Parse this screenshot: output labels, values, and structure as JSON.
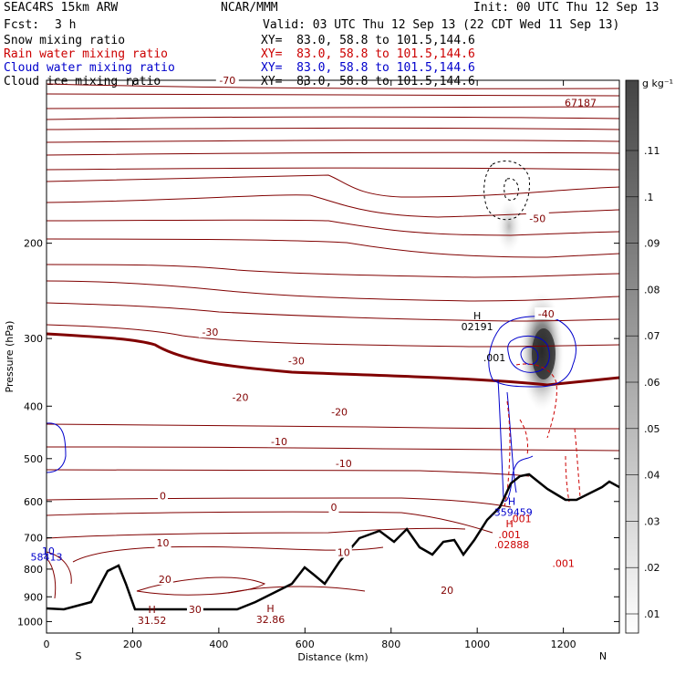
{
  "header": {
    "title": "SEAC4RS 15km ARW",
    "org": "NCAR/MMM",
    "init": "Init: 00 UTC Thu 12 Sep 13",
    "fcst_label": "Fcst:",
    "fcst_value": "3 h",
    "valid": "Valid: 03 UTC Thu 12 Sep 13 (22 CDT Wed 11 Sep 13)"
  },
  "legend_lines": [
    {
      "name": "Snow mixing ratio",
      "xy": "XY=  83.0, 58.8 to 101.5,144.6",
      "color": "#000000"
    },
    {
      "name": "Rain water mixing ratio",
      "xy": "XY=  83.0, 58.8 to 101.5,144.6",
      "color": "#cc0000"
    },
    {
      "name": "Cloud water mixing ratio",
      "xy": "XY=  83.0, 58.8 to 101.5,144.6",
      "color": "#0000cc"
    },
    {
      "name": "Cloud ice mixing ratio",
      "xy": "XY=  83.0, 58.8 to 101.5,144.6",
      "color": "#000000"
    }
  ],
  "colorbar": {
    "unit": "g kg⁻¹",
    "labels": [
      ".11",
      ".1",
      ".09",
      ".08",
      ".07",
      ".06",
      ".05",
      ".04",
      ".03",
      ".02",
      ".01"
    ]
  },
  "chart_data": {
    "type": "heatmap",
    "xlabel": "Distance (km)",
    "ylabel": "Pressure (hPa)",
    "xlim": [
      0,
      1330
    ],
    "ylim": [
      1050,
      100
    ],
    "y_scale": "log",
    "x_ticks": [
      0,
      200,
      400,
      600,
      800,
      1000,
      1200
    ],
    "x_tick_labels": [
      "0",
      "200",
      "400",
      "600",
      "800",
      "1000",
      "1200"
    ],
    "y_ticks": [
      200,
      300,
      400,
      500,
      600,
      700,
      800,
      900,
      1000
    ],
    "y_tick_labels": [
      "200",
      "300",
      "400",
      "500",
      "600",
      "700",
      "800",
      "900",
      "1000"
    ],
    "start_label": "S",
    "end_label": "N",
    "temperature_contours": [
      {
        "label": "-70",
        "x": 420,
        "p": 100
      },
      {
        "label": "-50",
        "x": 1140,
        "p": 180
      },
      {
        "label": "-40",
        "x": 1160,
        "p": 270
      },
      {
        "label": "-30",
        "x": 380,
        "p": 292
      },
      {
        "label": "-30",
        "x": 580,
        "p": 330
      },
      {
        "label": "-20",
        "x": 450,
        "p": 385
      },
      {
        "label": "-20",
        "x": 680,
        "p": 410
      },
      {
        "label": "-10",
        "x": 540,
        "p": 465
      },
      {
        "label": "-10",
        "x": 690,
        "p": 510
      },
      {
        "label": "0",
        "x": 270,
        "p": 585
      },
      {
        "label": "0",
        "x": 667,
        "p": 615
      },
      {
        "label": "10",
        "x": 270,
        "p": 715
      },
      {
        "label": "10",
        "x": 690,
        "p": 745
      },
      {
        "label": "20",
        "x": 275,
        "p": 835
      },
      {
        "label": "20",
        "x": 930,
        "p": 875
      },
      {
        "label": "30",
        "x": 345,
        "p": 950
      }
    ],
    "annotations": [
      {
        "label": "H",
        "value": "02191",
        "x": 1000,
        "p": 285
      },
      {
        "label": "",
        "value": ".001",
        "x": 1040,
        "p": 325
      },
      {
        "label": "H",
        "value": ".359459",
        "x": 1080,
        "p": 628
      },
      {
        "label": "",
        "value": ".001",
        "x": 1100,
        "p": 645
      },
      {
        "label": "H",
        "value": ".001",
        "x": 1075,
        "p": 690
      },
      {
        "label": "",
        "value": ".02888",
        "x": 1080,
        "p": 720
      },
      {
        "label": "",
        "value": ".001",
        "x": 1200,
        "p": 780
      },
      {
        "label": "",
        "value": "58413",
        "x": 0,
        "p": 760
      },
      {
        "label": "",
        "value": "10",
        "x": 4,
        "p": 740
      },
      {
        "label": "H",
        "value": "31.52",
        "x": 245,
        "p": 995
      },
      {
        "label": "H",
        "value": "32.86",
        "x": 520,
        "p": 990
      },
      {
        "label": "",
        "value": "67187",
        "x": 1240,
        "p": 110
      }
    ]
  }
}
